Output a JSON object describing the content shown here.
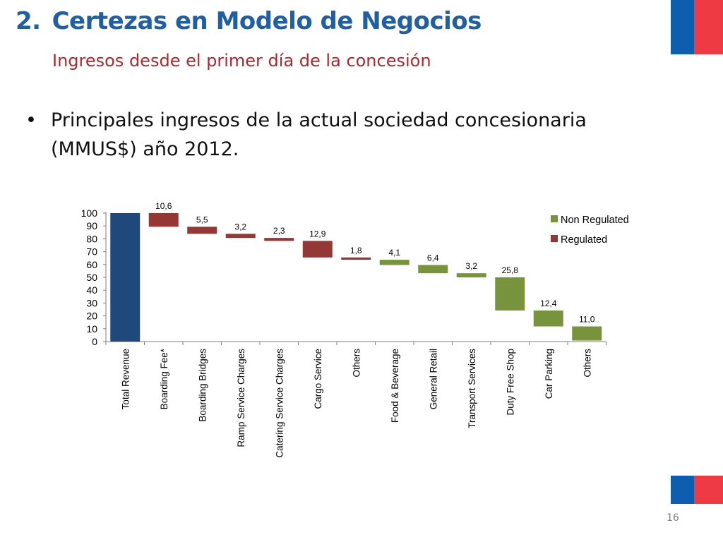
{
  "slide": {
    "title_number": "2.",
    "title_text": "Certezas en Modelo de Negocios",
    "subtitle": "Ingresos desde el primer día de la concesión",
    "bullet_symbol": "•",
    "bullet_line1": "Principales ingresos de la actual sociedad concesionaria",
    "bullet_line2": "(MMUS$) año 2012.",
    "page_number": "16",
    "logo_colors": {
      "blue": "#0d5eae",
      "red": "#ee3a42"
    }
  },
  "chart_data": {
    "type": "bar",
    "subtype": "waterfall",
    "categories": [
      "Total Revenue",
      "Boarding Fee*",
      "Boarding Bridges",
      "Ramp Service Charges",
      "Catering Service Charges",
      "Cargo Service",
      "Others",
      "Food & Beverage",
      "General Retail",
      "Transport Services",
      "Duty Free Shop",
      "Car Parking",
      "Others"
    ],
    "values": [
      100,
      10.6,
      5.5,
      3.2,
      2.3,
      12.9,
      1.8,
      4.1,
      6.4,
      3.2,
      25.8,
      12.4,
      11.0
    ],
    "value_labels": [
      "",
      "10,6",
      "5,5",
      "3,2",
      "2,3",
      "12,9",
      "1,8",
      "4,1",
      "6,4",
      "3,2",
      "25,8",
      "12,4",
      "11,0"
    ],
    "kinds": [
      "total",
      "regulated",
      "regulated",
      "regulated",
      "regulated",
      "regulated",
      "regulated",
      "non_regulated",
      "non_regulated",
      "non_regulated",
      "non_regulated",
      "non_regulated",
      "non_regulated"
    ],
    "y_ticks": [
      0,
      10,
      20,
      30,
      40,
      50,
      60,
      70,
      80,
      90,
      100
    ],
    "ylim": [
      0,
      100
    ],
    "legend": [
      {
        "key": "non_regulated",
        "label": "Non Regulated",
        "color": "#77933c"
      },
      {
        "key": "regulated",
        "label": "Regulated",
        "color": "#953735"
      }
    ],
    "colors": {
      "total": "#1f497d",
      "regulated": "#953735",
      "non_regulated": "#77933c",
      "axis": "#808080"
    },
    "legend_position": "right",
    "grid": false
  }
}
